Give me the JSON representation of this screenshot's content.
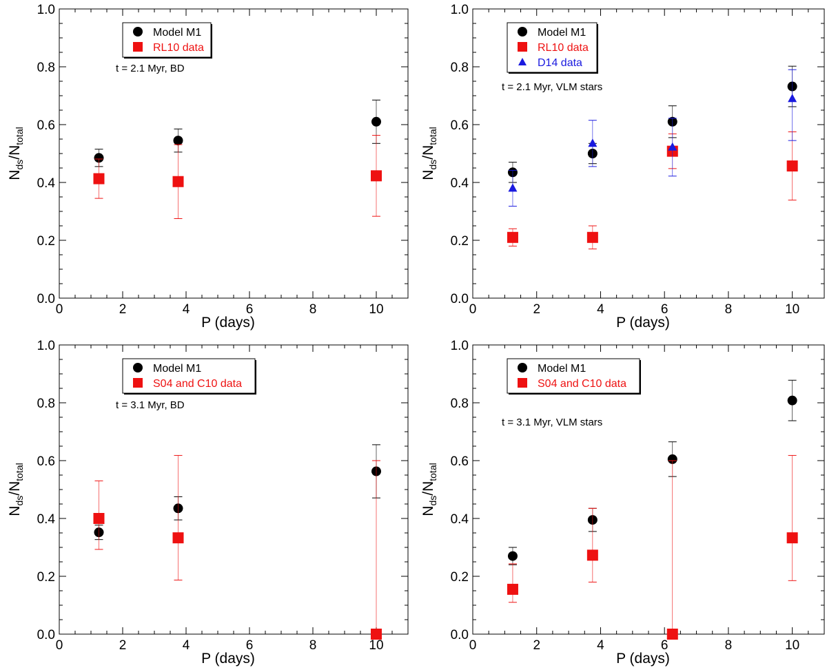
{
  "chart_data": [
    {
      "type": "scatter",
      "title": "",
      "xlabel": "P (days)",
      "ylabel": {
        "main": "N",
        "sub1": "ds",
        "mid": "/N",
        "sub2": "total"
      },
      "xlim": [
        0,
        11
      ],
      "ylim": [
        0,
        1
      ],
      "x_ticks": [
        "0",
        "2",
        "4",
        "6",
        "8",
        "10"
      ],
      "y_ticks": [
        "0.0",
        "0.2",
        "0.4",
        "0.6",
        "0.8",
        "1.0"
      ],
      "annotation": "t =   2.1 Myr, BD",
      "series": [
        {
          "name": "Model M1",
          "color": "#000000",
          "marker": "circle",
          "points": [
            {
              "x": 1.25,
              "y": 0.485,
              "err_lo": 0.03,
              "err_hi": 0.03
            },
            {
              "x": 3.75,
              "y": 0.545,
              "err_lo": 0.04,
              "err_hi": 0.04
            },
            {
              "x": 10,
              "y": 0.61,
              "err_lo": 0.075,
              "err_hi": 0.075
            }
          ]
        },
        {
          "name": "RL10 data",
          "color": "#ee1111",
          "marker": "square",
          "points": [
            {
              "x": 1.25,
              "y": 0.413,
              "err_lo": 0.068,
              "err_hi": 0.068
            },
            {
              "x": 3.75,
              "y": 0.403,
              "err_lo": 0.128,
              "err_hi": 0.128
            },
            {
              "x": 10,
              "y": 0.423,
              "err_lo": 0.14,
              "err_hi": 0.14
            }
          ]
        }
      ]
    },
    {
      "type": "scatter",
      "title": "",
      "xlabel": "P (days)",
      "ylabel": {
        "main": "N",
        "sub1": "ds",
        "mid": "/N",
        "sub2": "total"
      },
      "xlim": [
        0,
        11
      ],
      "ylim": [
        0,
        1
      ],
      "x_ticks": [
        "0",
        "2",
        "4",
        "6",
        "8",
        "10"
      ],
      "y_ticks": [
        "0.0",
        "0.2",
        "0.4",
        "0.6",
        "0.8",
        "1.0"
      ],
      "annotation": "t =   2.1 Myr, VLM stars",
      "series": [
        {
          "name": "Model M1",
          "color": "#000000",
          "marker": "circle",
          "points": [
            {
              "x": 1.25,
              "y": 0.435,
              "err_lo": 0.035,
              "err_hi": 0.035
            },
            {
              "x": 3.75,
              "y": 0.5,
              "err_lo": 0.035,
              "err_hi": 0.035
            },
            {
              "x": 6.25,
              "y": 0.61,
              "err_lo": 0.055,
              "err_hi": 0.055
            },
            {
              "x": 10,
              "y": 0.732,
              "err_lo": 0.07,
              "err_hi": 0.07
            }
          ]
        },
        {
          "name": "RL10 data",
          "color": "#ee1111",
          "marker": "square",
          "points": [
            {
              "x": 1.25,
              "y": 0.21,
              "err_lo": 0.03,
              "err_hi": 0.03
            },
            {
              "x": 3.75,
              "y": 0.21,
              "err_lo": 0.04,
              "err_hi": 0.04
            },
            {
              "x": 6.25,
              "y": 0.508,
              "err_lo": 0.06,
              "err_hi": 0.06
            },
            {
              "x": 10,
              "y": 0.457,
              "err_lo": 0.118,
              "err_hi": 0.118
            }
          ]
        },
        {
          "name": "D14 data",
          "color": "#1a1adf",
          "marker": "triangle",
          "points": [
            {
              "x": 1.25,
              "y": 0.38,
              "err_lo": 0.062,
              "err_hi": 0.062
            },
            {
              "x": 3.75,
              "y": 0.535,
              "err_lo": 0.08,
              "err_hi": 0.08
            },
            {
              "x": 6.25,
              "y": 0.522,
              "err_lo": 0.1,
              "err_hi": 0.1
            },
            {
              "x": 10,
              "y": 0.69,
              "err_lo": 0.145,
              "err_hi": 0.1
            }
          ]
        }
      ]
    },
    {
      "type": "scatter",
      "title": "",
      "xlabel": "P (days)",
      "ylabel": {
        "main": "N",
        "sub1": "ds",
        "mid": "/N",
        "sub2": "total"
      },
      "xlim": [
        0,
        11
      ],
      "ylim": [
        0,
        1
      ],
      "x_ticks": [
        "0",
        "2",
        "4",
        "6",
        "8",
        "10"
      ],
      "y_ticks": [
        "0.0",
        "0.2",
        "0.4",
        "0.6",
        "0.8",
        "1.0"
      ],
      "annotation": "t =   3.1 Myr, BD",
      "series": [
        {
          "name": "Model M1",
          "color": "#000000",
          "marker": "circle",
          "points": [
            {
              "x": 1.25,
              "y": 0.352,
              "err_lo": 0.025,
              "err_hi": 0.025
            },
            {
              "x": 3.75,
              "y": 0.435,
              "err_lo": 0.04,
              "err_hi": 0.04
            },
            {
              "x": 10,
              "y": 0.563,
              "err_lo": 0.092,
              "err_hi": 0.092
            }
          ]
        },
        {
          "name": "S04 and C10 data",
          "color": "#ee1111",
          "marker": "square",
          "points": [
            {
              "x": 1.25,
              "y": 0.4,
              "err_lo": 0.107,
              "err_hi": 0.13
            },
            {
              "x": 3.75,
              "y": 0.333,
              "err_lo": 0.146,
              "err_hi": 0.285
            },
            {
              "x": 10,
              "y": 0.0,
              "err_lo": 0.0,
              "err_hi": 0.6
            }
          ]
        }
      ]
    },
    {
      "type": "scatter",
      "title": "",
      "xlabel": "P (days)",
      "ylabel": {
        "main": "N",
        "sub1": "ds",
        "mid": "/N",
        "sub2": "total"
      },
      "xlim": [
        0,
        11
      ],
      "ylim": [
        0,
        1
      ],
      "x_ticks": [
        "0",
        "2",
        "4",
        "6",
        "8",
        "10"
      ],
      "y_ticks": [
        "0.0",
        "0.2",
        "0.4",
        "0.6",
        "0.8",
        "1.0"
      ],
      "annotation": "t =   3.1 Myr, VLM stars",
      "series": [
        {
          "name": "Model M1",
          "color": "#000000",
          "marker": "circle",
          "points": [
            {
              "x": 1.25,
              "y": 0.27,
              "err_lo": 0.03,
              "err_hi": 0.03
            },
            {
              "x": 3.75,
              "y": 0.395,
              "err_lo": 0.04,
              "err_hi": 0.04
            },
            {
              "x": 6.25,
              "y": 0.605,
              "err_lo": 0.06,
              "err_hi": 0.06
            },
            {
              "x": 10,
              "y": 0.808,
              "err_lo": 0.07,
              "err_hi": 0.07
            }
          ]
        },
        {
          "name": "S04 and C10 data",
          "color": "#ee1111",
          "marker": "square",
          "points": [
            {
              "x": 1.25,
              "y": 0.155,
              "err_lo": 0.045,
              "err_hi": 0.088
            },
            {
              "x": 3.75,
              "y": 0.273,
              "err_lo": 0.093,
              "err_hi": 0.162
            },
            {
              "x": 6.25,
              "y": 0.0,
              "err_lo": 0.0,
              "err_hi": 0.6
            },
            {
              "x": 10,
              "y": 0.333,
              "err_lo": 0.148,
              "err_hi": 0.285
            }
          ]
        }
      ]
    }
  ]
}
